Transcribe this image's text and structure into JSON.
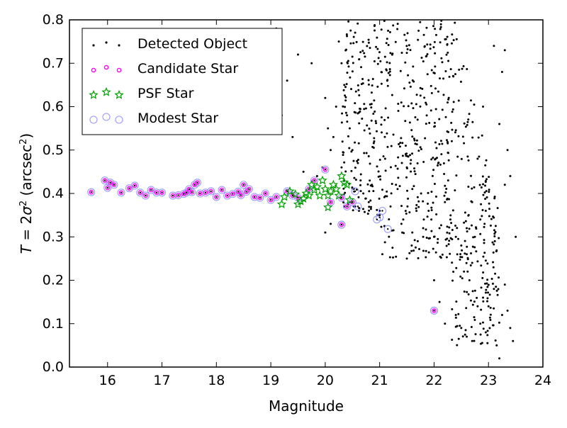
{
  "chart_data": {
    "type": "scatter",
    "xlabel": "Magnitude",
    "ylabel": {
      "prefix": "T",
      "eq": " = 2",
      "sigma": "σ",
      "sup": "2",
      "open": " (arcsec",
      "unit_sup": "2",
      "close": ")"
    },
    "xlim": [
      15.3,
      24
    ],
    "ylim": [
      0.0,
      0.8
    ],
    "x_ticks": [
      16,
      17,
      18,
      19,
      20,
      21,
      22,
      23,
      24
    ],
    "y_ticks": [
      0.0,
      0.1,
      0.2,
      0.3,
      0.4,
      0.5,
      0.6,
      0.7,
      0.8
    ],
    "grid": false,
    "legend_position": "top-left",
    "series": [
      {
        "name": "Detected Object",
        "marker": "dot",
        "color": "#000000",
        "generated_points": {
          "note_count": 0
        },
        "points": [
          [
            20.55,
            0.37
          ],
          [
            20.62,
            0.36
          ],
          [
            20.9,
            0.52
          ],
          [
            21.0,
            0.35
          ],
          [
            21.05,
            0.26
          ],
          [
            21.3,
            0.42
          ],
          [
            21.5,
            0.46
          ],
          [
            21.7,
            0.29
          ],
          [
            21.95,
            0.34
          ],
          [
            22.0,
            0.2
          ],
          [
            22.1,
            0.15
          ],
          [
            22.2,
            0.1
          ],
          [
            22.4,
            0.12
          ],
          [
            22.5,
            0.09
          ],
          [
            22.6,
            0.07
          ],
          [
            22.7,
            0.06
          ],
          [
            22.8,
            0.14
          ],
          [
            22.85,
            0.1
          ],
          [
            22.9,
            0.16
          ],
          [
            22.95,
            0.08
          ],
          [
            23.0,
            0.14
          ],
          [
            23.1,
            0.18
          ],
          [
            23.15,
            0.05
          ],
          [
            23.2,
            0.02
          ],
          [
            23.25,
            0.12
          ],
          [
            23.3,
            0.19
          ],
          [
            23.35,
            0.13
          ],
          [
            23.4,
            0.09
          ],
          [
            23.45,
            0.06
          ],
          [
            23.5,
            0.3
          ],
          [
            23.35,
            0.5
          ],
          [
            23.4,
            0.44
          ],
          [
            23.3,
            0.42
          ],
          [
            23.2,
            0.56
          ],
          [
            23.25,
            0.68
          ],
          [
            23.1,
            0.74
          ],
          [
            23.3,
            0.73
          ],
          [
            22.9,
            0.6
          ],
          [
            22.8,
            0.48
          ],
          [
            22.6,
            0.26
          ],
          [
            22.7,
            0.24
          ],
          [
            22.65,
            0.2
          ],
          [
            22.55,
            0.22
          ],
          [
            22.75,
            0.3
          ],
          [
            22.85,
            0.34
          ],
          [
            22.95,
            0.36
          ],
          [
            22.7,
            0.38
          ],
          [
            22.6,
            0.32
          ],
          [
            22.5,
            0.28
          ],
          [
            22.4,
            0.3
          ],
          [
            22.3,
            0.34
          ],
          [
            22.2,
            0.38
          ],
          [
            22.1,
            0.32
          ],
          [
            22.0,
            0.3
          ],
          [
            21.9,
            0.36
          ],
          [
            21.8,
            0.32
          ],
          [
            21.6,
            0.31
          ],
          [
            21.4,
            0.33
          ],
          [
            21.2,
            0.37
          ],
          [
            21.0,
            0.36
          ],
          [
            20.8,
            0.38
          ],
          [
            20.7,
            0.4
          ],
          [
            20.65,
            0.43
          ],
          [
            20.6,
            0.47
          ],
          [
            20.5,
            0.5
          ],
          [
            20.45,
            0.55
          ],
          [
            20.4,
            0.58
          ],
          [
            20.35,
            0.65
          ],
          [
            20.3,
            0.7
          ],
          [
            20.25,
            0.75
          ],
          [
            20.2,
            0.6
          ],
          [
            20.15,
            0.53
          ],
          [
            20.1,
            0.5
          ],
          [
            20.05,
            0.55
          ],
          [
            20.0,
            0.62
          ],
          [
            19.95,
            0.46
          ],
          [
            19.85,
            0.44
          ],
          [
            19.75,
            0.7
          ],
          [
            19.6,
            0.45
          ],
          [
            19.5,
            0.72
          ],
          [
            19.4,
            0.53
          ],
          [
            19.3,
            0.66
          ],
          [
            19.2,
            0.58
          ],
          [
            19.1,
            0.78
          ],
          [
            20.0,
            0.31
          ],
          [
            20.1,
            0.33
          ],
          [
            20.3,
            0.46
          ],
          [
            21.1,
            0.48
          ],
          [
            21.5,
            0.25
          ],
          [
            21.8,
            0.3
          ]
        ]
      },
      {
        "name": "Candidate Star",
        "marker": "circle",
        "color": "#ff00ff",
        "points": [
          [
            15.7,
            0.403
          ],
          [
            15.95,
            0.43
          ],
          [
            16.0,
            0.413
          ],
          [
            16.05,
            0.425
          ],
          [
            16.12,
            0.42
          ],
          [
            16.25,
            0.402
          ],
          [
            16.4,
            0.412
          ],
          [
            16.5,
            0.418
          ],
          [
            16.6,
            0.402
          ],
          [
            16.7,
            0.395
          ],
          [
            16.8,
            0.408
          ],
          [
            16.9,
            0.402
          ],
          [
            17.0,
            0.402
          ],
          [
            17.2,
            0.395
          ],
          [
            17.4,
            0.399
          ],
          [
            17.5,
            0.41
          ],
          [
            17.55,
            0.403
          ],
          [
            17.6,
            0.42
          ],
          [
            17.7,
            0.4
          ],
          [
            17.8,
            0.402
          ],
          [
            17.9,
            0.405
          ],
          [
            18.0,
            0.392
          ],
          [
            18.1,
            0.408
          ],
          [
            18.2,
            0.395
          ],
          [
            18.3,
            0.399
          ],
          [
            18.4,
            0.404
          ],
          [
            18.5,
            0.42
          ],
          [
            18.6,
            0.41
          ],
          [
            18.7,
            0.392
          ],
          [
            18.8,
            0.39
          ],
          [
            18.9,
            0.4
          ],
          [
            19.0,
            0.385
          ],
          [
            19.1,
            0.392
          ],
          [
            19.3,
            0.405
          ],
          [
            19.4,
            0.395
          ],
          [
            19.5,
            0.39
          ],
          [
            19.7,
            0.41
          ],
          [
            19.8,
            0.43
          ],
          [
            20.0,
            0.455
          ],
          [
            20.1,
            0.38
          ],
          [
            20.3,
            0.39
          ],
          [
            20.4,
            0.37
          ],
          [
            20.5,
            0.38
          ],
          [
            20.3,
            0.328
          ],
          [
            22.0,
            0.13
          ],
          [
            17.3,
            0.396
          ],
          [
            17.45,
            0.402
          ],
          [
            17.65,
            0.425
          ],
          [
            18.45,
            0.396
          ],
          [
            18.55,
            0.404
          ]
        ]
      },
      {
        "name": "PSF Star",
        "marker": "star",
        "color": "#00a000",
        "points": [
          [
            19.2,
            0.375
          ],
          [
            19.25,
            0.392
          ],
          [
            19.35,
            0.405
          ],
          [
            19.45,
            0.398
          ],
          [
            19.5,
            0.375
          ],
          [
            19.6,
            0.388
          ],
          [
            19.7,
            0.395
          ],
          [
            19.75,
            0.42
          ],
          [
            19.8,
            0.408
          ],
          [
            19.85,
            0.415
          ],
          [
            19.9,
            0.395
          ],
          [
            19.95,
            0.43
          ],
          [
            20.0,
            0.41
          ],
          [
            20.05,
            0.395
          ],
          [
            20.1,
            0.405
          ],
          [
            20.15,
            0.42
          ],
          [
            20.2,
            0.41
          ],
          [
            20.25,
            0.395
          ],
          [
            20.3,
            0.44
          ],
          [
            20.35,
            0.425
          ],
          [
            20.4,
            0.42
          ],
          [
            20.45,
            0.385
          ],
          [
            20.05,
            0.368
          ],
          [
            19.65,
            0.4
          ],
          [
            19.55,
            0.382
          ]
        ]
      },
      {
        "name": "Modest Star",
        "marker": "open-circle",
        "color": "#9999ff",
        "points": [
          [
            20.3,
            0.328
          ],
          [
            20.5,
            0.38
          ],
          [
            20.6,
            0.37
          ],
          [
            20.95,
            0.34
          ],
          [
            21.05,
            0.36
          ],
          [
            21.15,
            0.318
          ],
          [
            21.0,
            0.345
          ],
          [
            22.0,
            0.13
          ],
          [
            20.55,
            0.405
          ]
        ]
      }
    ]
  }
}
